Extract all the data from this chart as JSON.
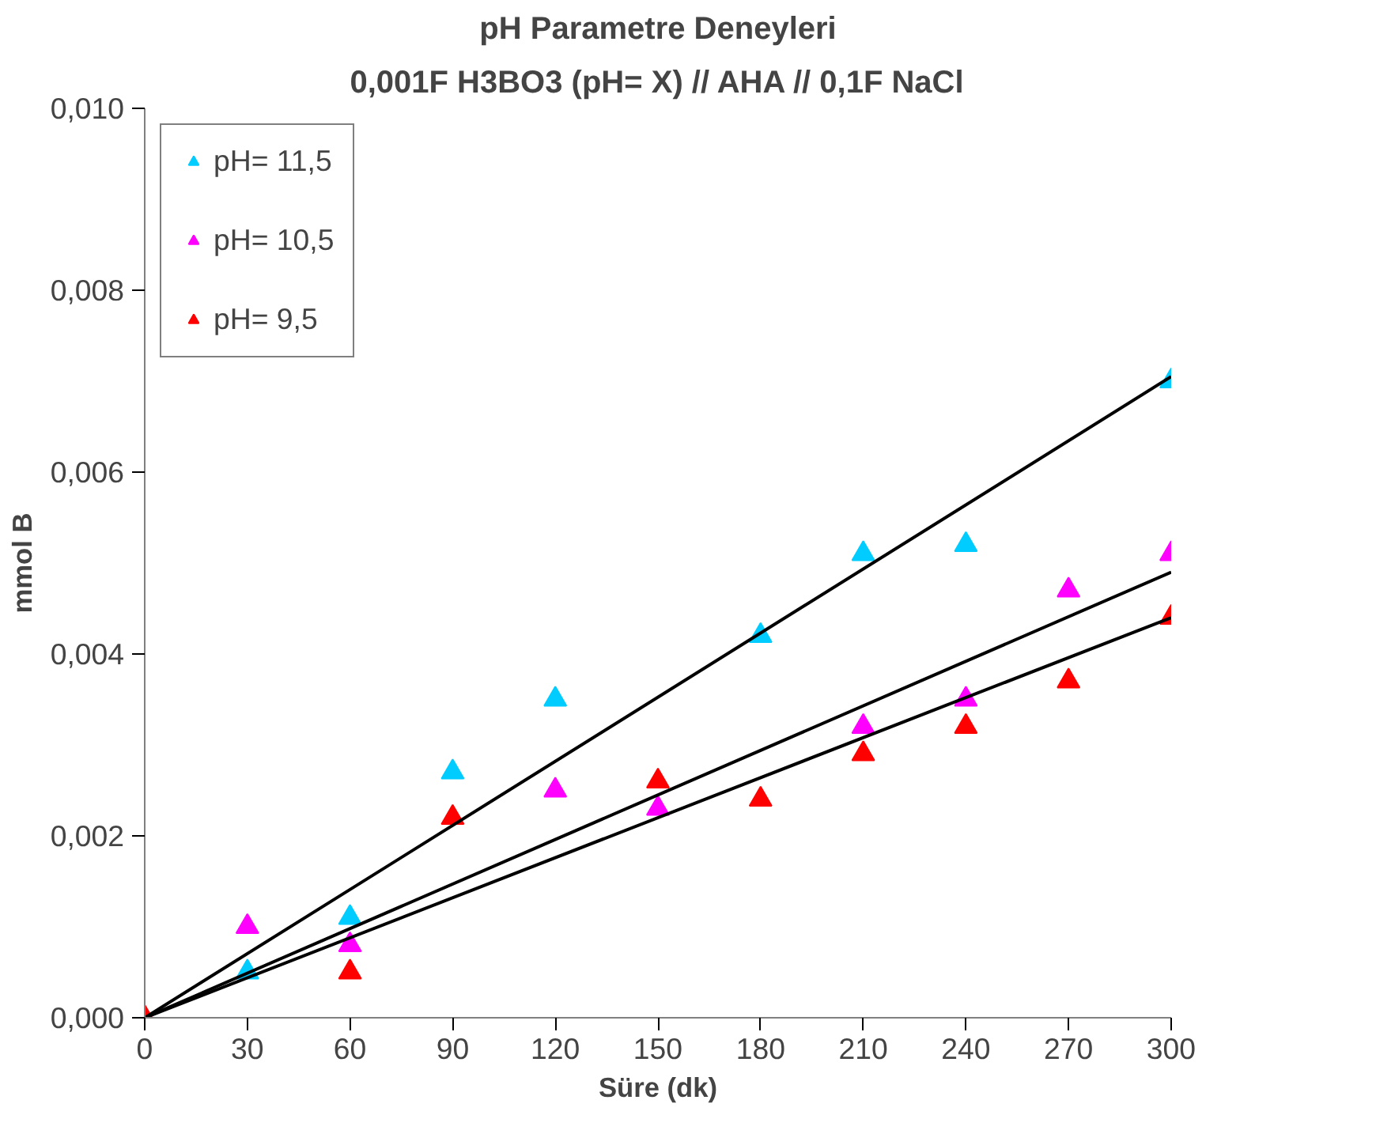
{
  "chart_data": {
    "type": "scatter",
    "title": "pH Parametre Deneyleri",
    "subtitle": "0,001F H3BO3 (pH= X) // AHA // 0,1F NaCl",
    "xlabel": "Süre (dk)",
    "ylabel": "mmol B",
    "xlim": [
      0,
      300
    ],
    "ylim": [
      0,
      0.01
    ],
    "xticks": [
      0,
      30,
      60,
      90,
      120,
      150,
      180,
      210,
      240,
      270,
      300
    ],
    "yticks": [
      {
        "value": 0,
        "label": "0,000"
      },
      {
        "value": 0.002,
        "label": "0,002"
      },
      {
        "value": 0.004,
        "label": "0,004"
      },
      {
        "value": 0.006,
        "label": "0,006"
      },
      {
        "value": 0.008,
        "label": "0,008"
      },
      {
        "value": 0.01,
        "label": "0,010"
      }
    ],
    "grid": false,
    "legend": "top left",
    "marker": "triangle",
    "series": [
      {
        "name": "pH= 11,5",
        "color": "#00ccff",
        "x": [
          30,
          60,
          90,
          120,
          180,
          210,
          240,
          300
        ],
        "values": [
          0.0005,
          0.0011,
          0.0027,
          0.0035,
          0.0042,
          0.0051,
          0.0052,
          0.007
        ]
      },
      {
        "name": "pH= 10,5",
        "color": "#ff00ff",
        "x": [
          30,
          60,
          120,
          150,
          210,
          240,
          270,
          300
        ],
        "values": [
          0.001,
          0.0008,
          0.0025,
          0.0023,
          0.0032,
          0.0035,
          0.0047,
          0.0051
        ]
      },
      {
        "name": "pH= 9,5",
        "color": "#ff0000",
        "x": [
          0,
          60,
          90,
          150,
          180,
          210,
          240,
          270,
          300
        ],
        "values": [
          0,
          0.0005,
          0.0022,
          0.0026,
          0.0024,
          0.0029,
          0.0032,
          0.0037,
          0.0044
        ]
      },
      {
        "type": "line",
        "marker": "none",
        "color": "#000000",
        "x": [
          0,
          300
        ],
        "values": [
          0,
          0.00705
        ]
      },
      {
        "type": "line",
        "marker": "none",
        "color": "#000000",
        "x": [
          0,
          300
        ],
        "values": [
          0,
          0.0049
        ]
      },
      {
        "type": "line",
        "marker": "none",
        "color": "#000000",
        "x": [
          0,
          300
        ],
        "values": [
          0,
          0.0044
        ]
      }
    ]
  }
}
